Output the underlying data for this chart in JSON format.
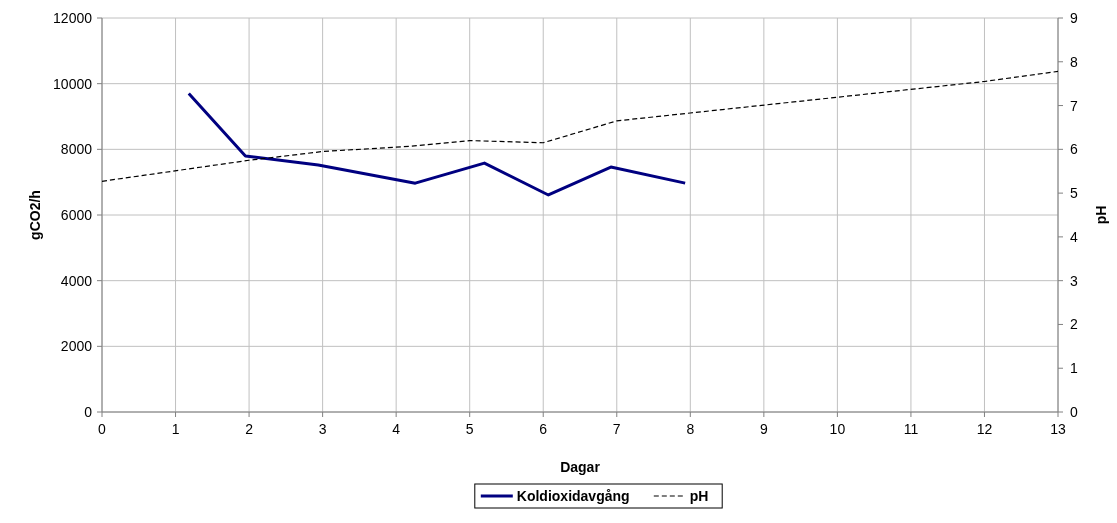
{
  "chart_data": {
    "type": "line",
    "xlabel": "Dagar",
    "ylabel": "gCO2/h",
    "y2label": "pH",
    "xlim": [
      0,
      13
    ],
    "xticks": [
      0,
      1,
      2,
      3,
      4,
      5,
      6,
      7,
      8,
      9,
      10,
      11,
      12,
      13
    ],
    "ylim": [
      0,
      12000
    ],
    "yticks": [
      0,
      2000,
      4000,
      6000,
      8000,
      10000,
      12000
    ],
    "y2lim": [
      0,
      9
    ],
    "y2ticks": [
      0,
      1,
      2,
      3,
      4,
      5,
      6,
      7,
      8,
      9
    ],
    "grid": true,
    "legend": "bottom",
    "marker": "none",
    "series": [
      {
        "name": "Koldioxidavgång",
        "color": "#000080",
        "line_style": "solid",
        "x": [
          1.18,
          1.95,
          2.94,
          4.26,
          5.2,
          6.07,
          6.92,
          7.93
        ],
        "values": [
          9700,
          7800,
          7520,
          6970,
          7580,
          6610,
          7460,
          6970
        ]
      },
      {
        "name": "pH",
        "color": "#000000",
        "line_style": "dashed",
        "axis": "y2",
        "x": [
          0,
          2,
          3,
          4.2,
          5,
          6,
          7,
          8,
          10,
          12,
          13
        ],
        "values": [
          5.27,
          5.75,
          5.95,
          6.07,
          6.2,
          6.15,
          6.65,
          6.83,
          7.19,
          7.55,
          7.78
        ]
      }
    ]
  }
}
